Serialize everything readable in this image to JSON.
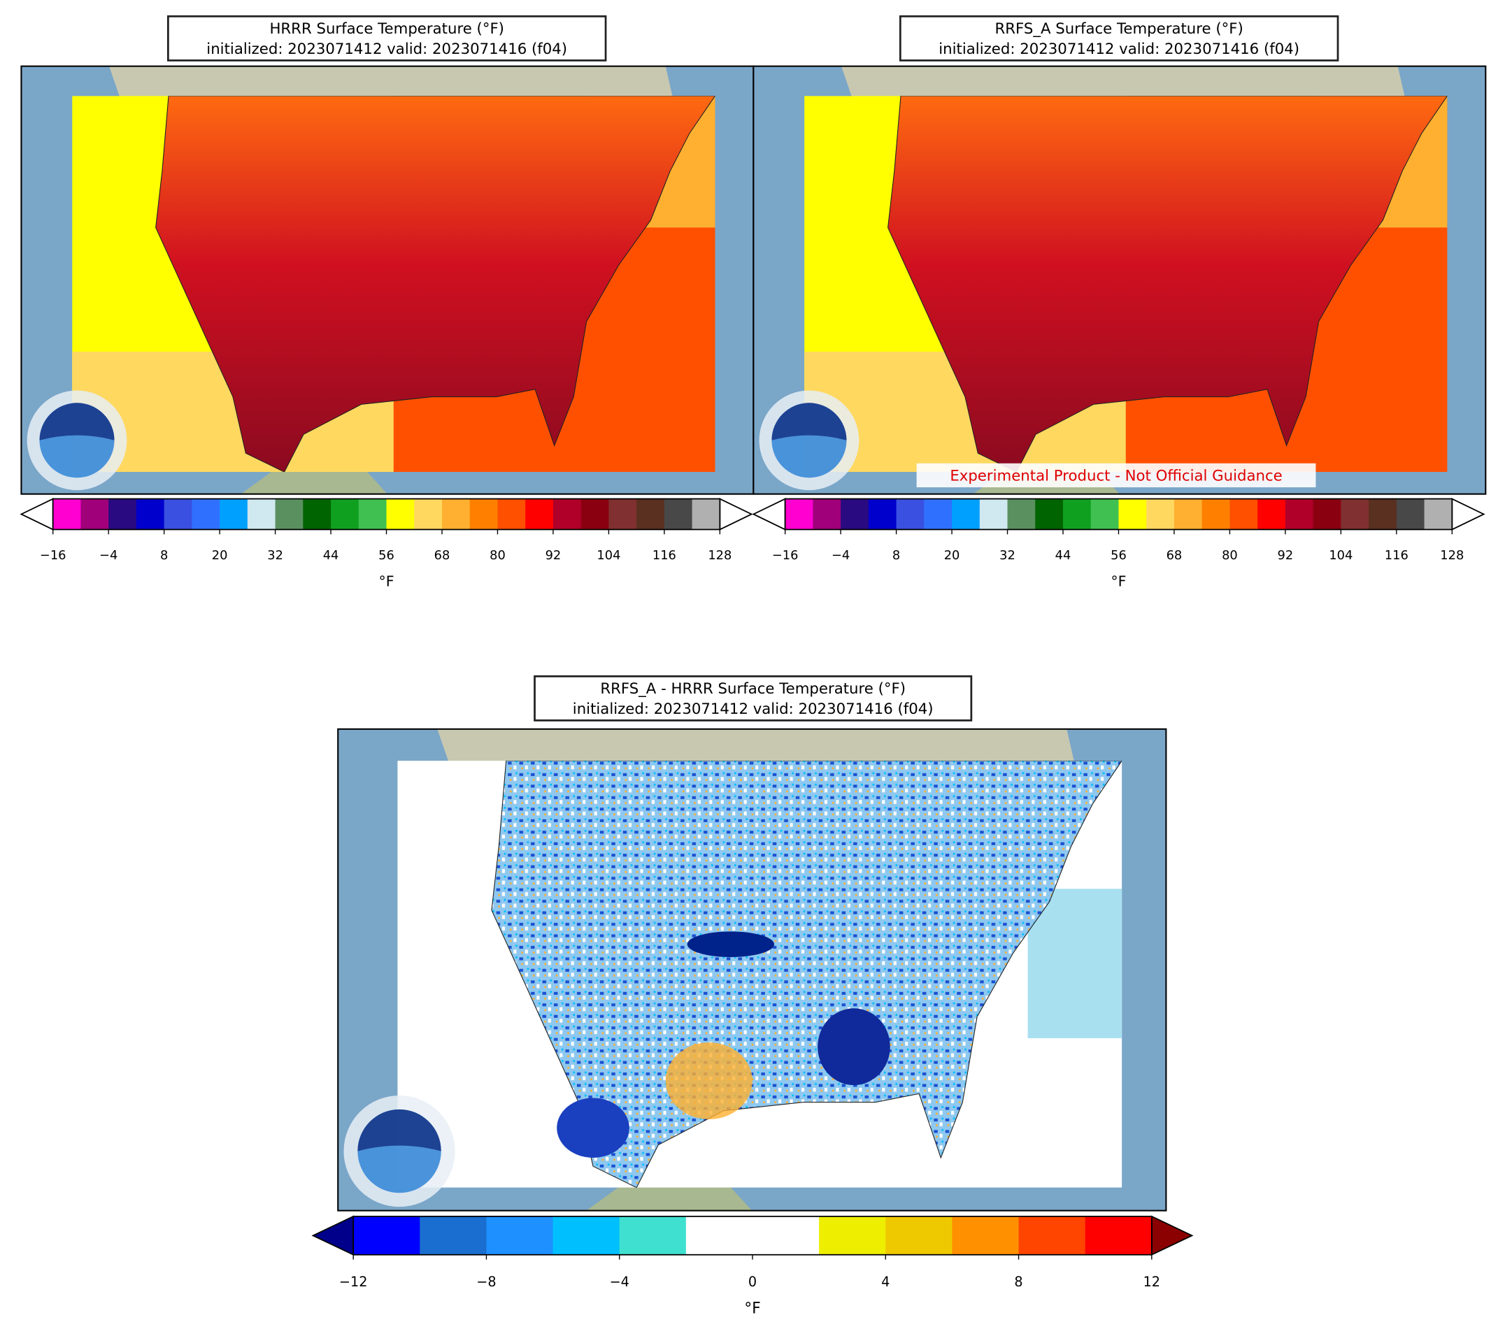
{
  "panels": [
    {
      "title": "HRRR Surface Temperature (°F)",
      "subtitle": "initialized: 2023071412 valid: 2023071416 (f04)",
      "colorbar": {
        "range": [
          -16,
          128
        ],
        "ticks": [
          {
            "value": -16,
            "label": "−16"
          },
          {
            "value": -4,
            "label": "−4"
          },
          8,
          20,
          32,
          44,
          56,
          68,
          80,
          92,
          104,
          116,
          128
        ],
        "colors": [
          "#ff00d0",
          "#a0007a",
          "#2a0a80",
          "#0000cc",
          "#3a50e0",
          "#3070ff",
          "#00a0ff",
          "#d0e8f0",
          "#5a9060",
          "#006400",
          "#10a020",
          "#40c050",
          "#ffff00",
          "#ffd860",
          "#ffb030",
          "#ff8000",
          "#ff5000",
          "#ff0000",
          "#b0002a",
          "#8b0010",
          "#803030",
          "#5a3020",
          "#484848",
          "#b0b0b0"
        ],
        "extend_colors": [
          "#ffffff",
          "#ffffff"
        ],
        "label": "°F"
      }
    },
    {
      "title": "RRFS_A Surface Temperature (°F)",
      "subtitle": "initialized: 2023071412 valid: 2023071416 (f04)",
      "annotation": "Experimental Product - Not Official Guidance",
      "colorbar": {
        "range": [
          -16,
          128
        ],
        "ticks": [
          {
            "value": -16,
            "label": "−16"
          },
          {
            "value": -4,
            "label": "−4"
          },
          8,
          20,
          32,
          44,
          56,
          68,
          80,
          92,
          104,
          116,
          128
        ],
        "colors": [
          "#ff00d0",
          "#a0007a",
          "#2a0a80",
          "#0000cc",
          "#3a50e0",
          "#3070ff",
          "#00a0ff",
          "#d0e8f0",
          "#5a9060",
          "#006400",
          "#10a020",
          "#40c050",
          "#ffff00",
          "#ffd860",
          "#ffb030",
          "#ff8000",
          "#ff5000",
          "#ff0000",
          "#b0002a",
          "#8b0010",
          "#803030",
          "#5a3020",
          "#484848",
          "#b0b0b0"
        ],
        "extend_colors": [
          "#ffffff",
          "#ffffff"
        ],
        "label": "°F"
      }
    },
    {
      "title": "RRFS_A - HRRR Surface Temperature (°F)",
      "subtitle": "initialized: 2023071412 valid: 2023071416 (f04)",
      "colorbar": {
        "range": [
          -12,
          12
        ],
        "ticks": [
          {
            "value": -12,
            "label": "−12"
          },
          {
            "value": -8,
            "label": "−8"
          },
          {
            "value": -4,
            "label": "−4"
          },
          0,
          4,
          8,
          12
        ],
        "colors": [
          "#0000ff",
          "#1a6ed0",
          "#1e90ff",
          "#00bfff",
          "#40e0d0",
          "#ffffff",
          "#ffffff",
          "#eeee00",
          "#eec900",
          "#ff9000",
          "#ff4500",
          "#ff0000"
        ],
        "extend_colors": [
          "#00008b",
          "#8b0000"
        ],
        "label": "°F"
      }
    }
  ]
}
